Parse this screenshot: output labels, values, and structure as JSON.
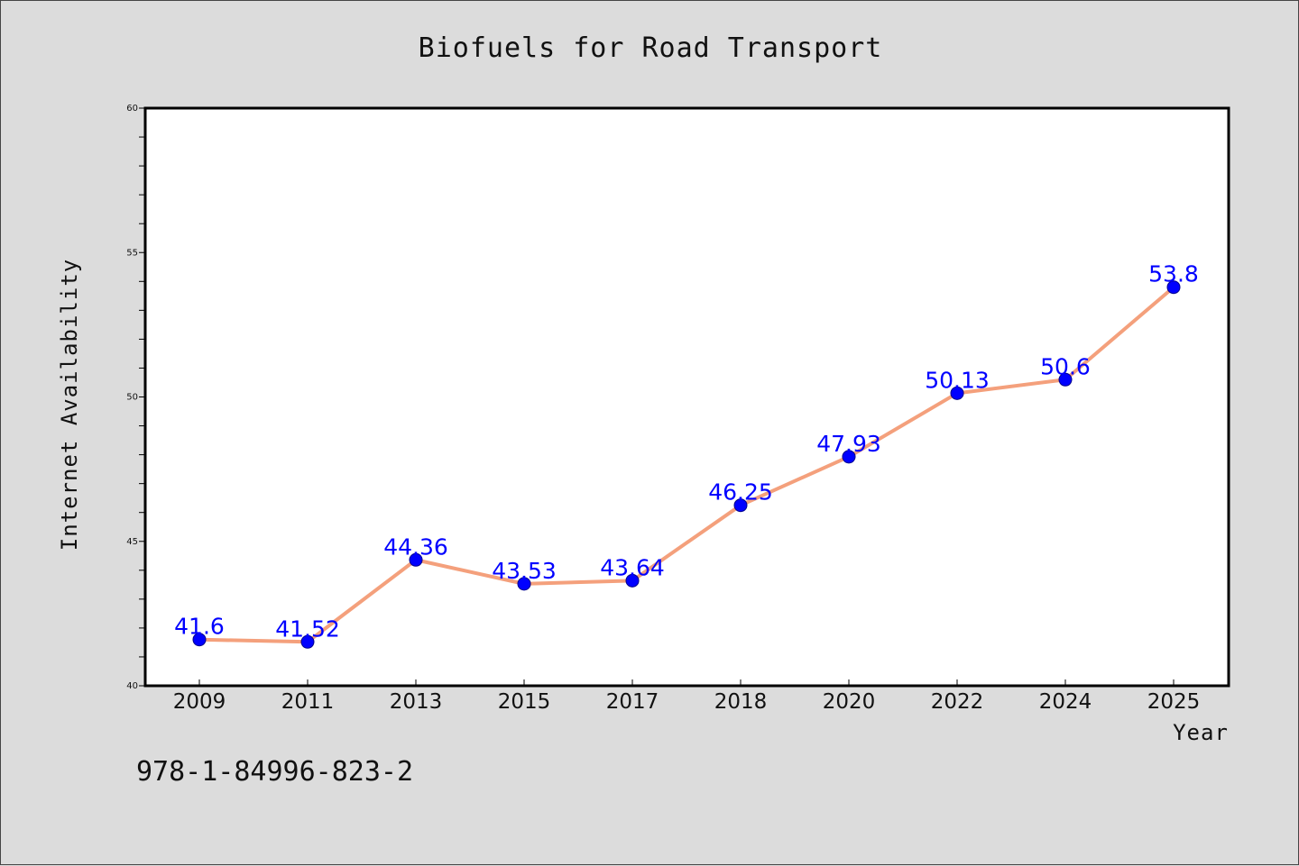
{
  "chart_data": {
    "type": "line",
    "title": "Biofuels for Road Transport",
    "xlabel": "Year",
    "ylabel": "Internet Availability",
    "categories": [
      "2009",
      "2011",
      "2013",
      "2015",
      "2017",
      "2018",
      "2020",
      "2022",
      "2024",
      "2025"
    ],
    "series": [
      {
        "values": [
          41.6,
          41.52,
          44.36,
          43.53,
          43.64,
          46.25,
          47.93,
          50.13,
          50.6,
          53.8
        ],
        "data_labels": [
          "41.6",
          "41.52",
          "44.36",
          "43.53",
          "43.64",
          "46.25",
          "47.93",
          "50.13",
          "50.6",
          "53.8"
        ]
      }
    ],
    "ylim": [
      40,
      60
    ],
    "yticks": [
      "40",
      "45",
      "50",
      "55",
      "60"
    ],
    "grid": false,
    "colors": {
      "line": "#f4a07c",
      "marker": "#0000ff",
      "marker_edge": "#00008b",
      "data_label": "#0000ff",
      "background": "#dcdcdc",
      "plot_background": "#ffffff"
    }
  },
  "footer": {
    "code": "978-1-84996-823-2"
  }
}
